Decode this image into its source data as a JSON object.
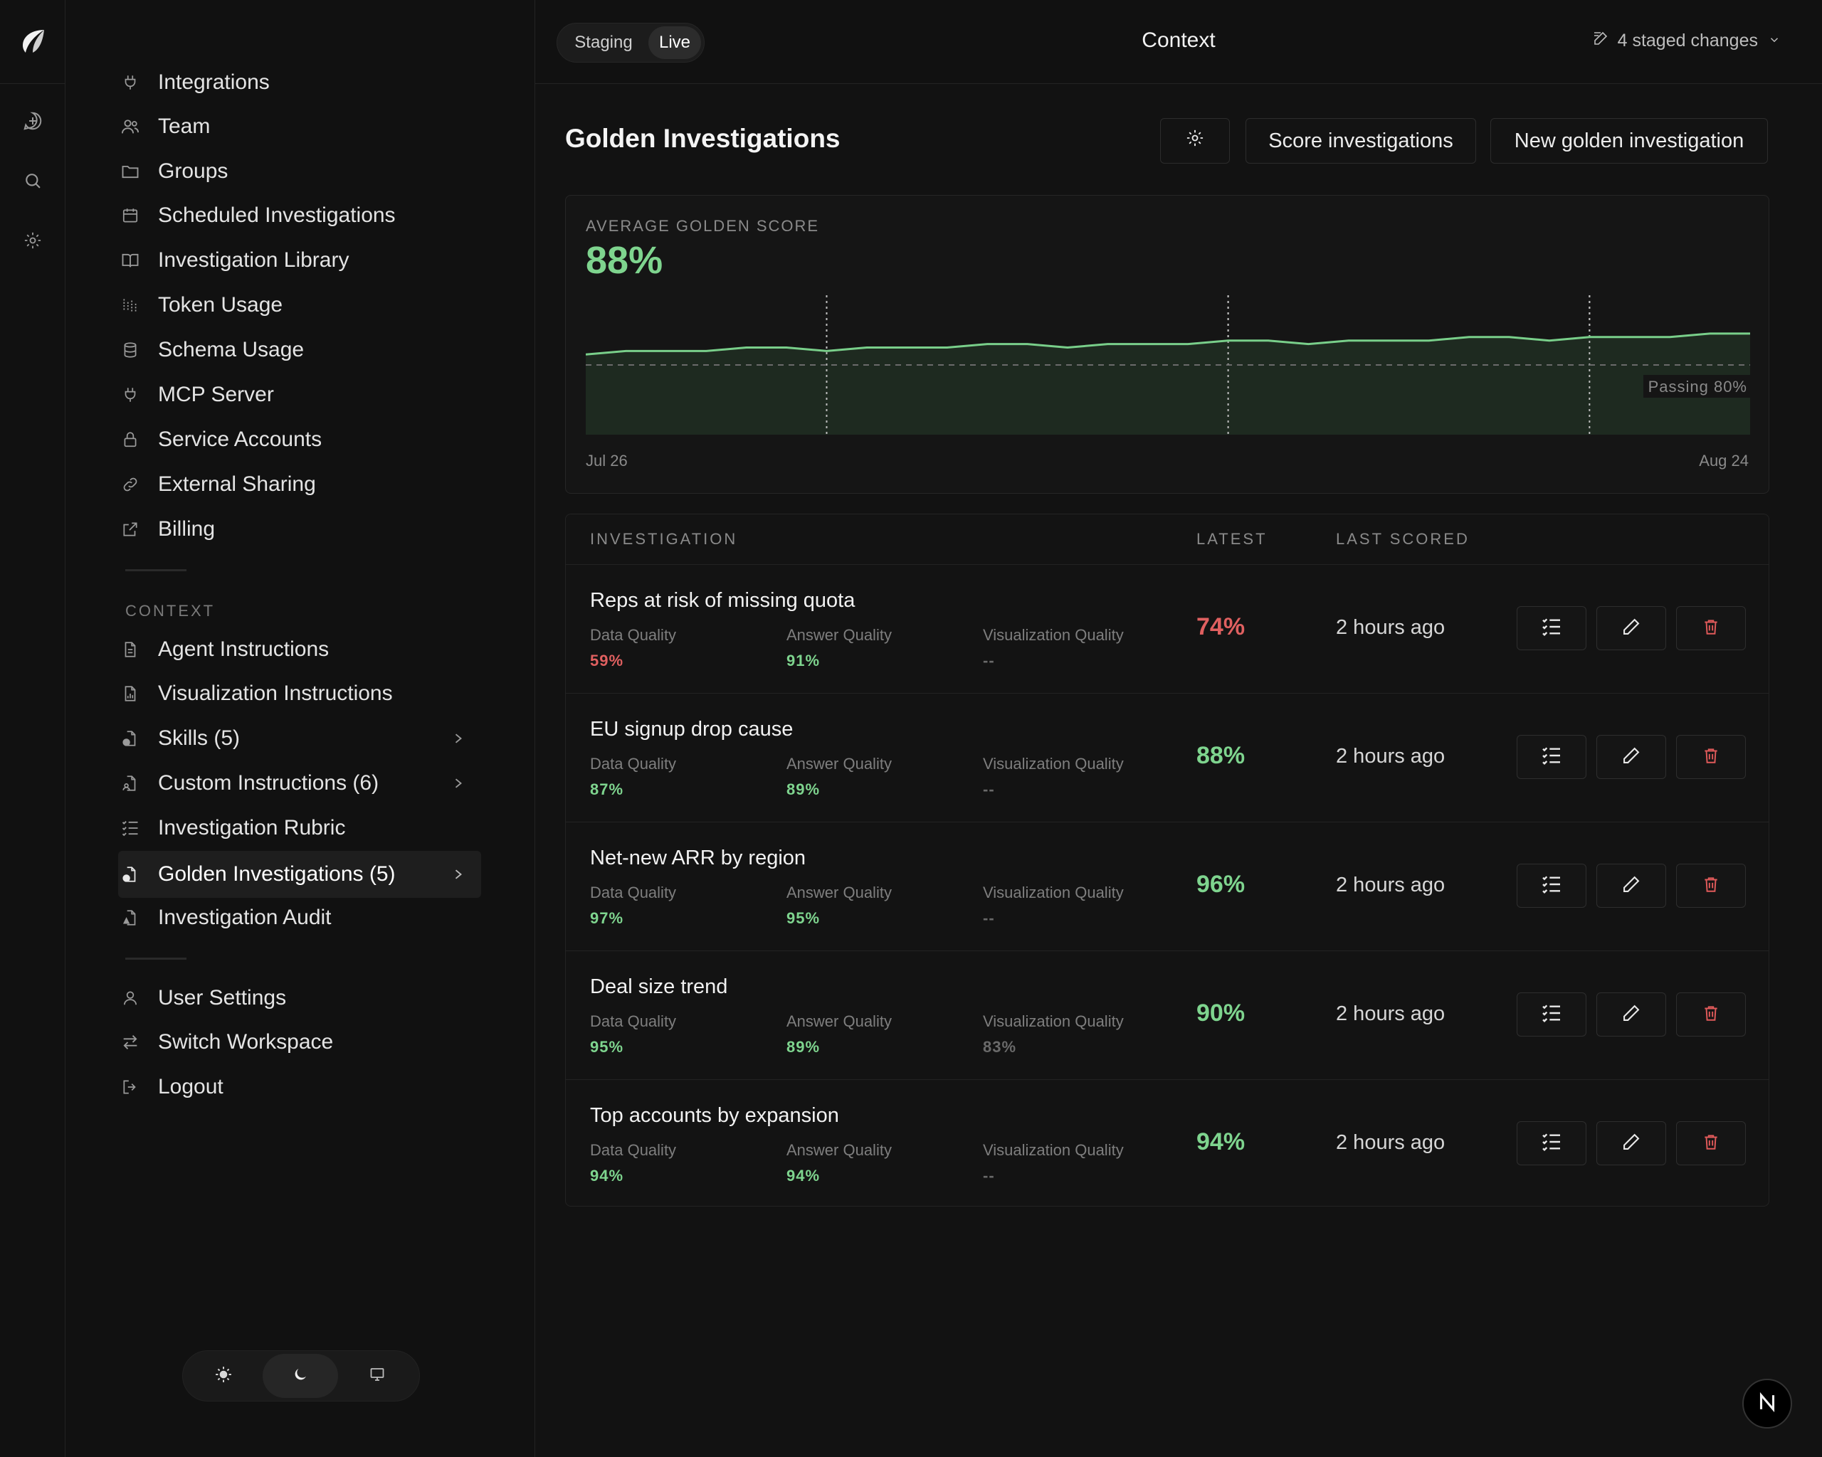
{
  "topbar": {
    "env": {
      "staging": "Staging",
      "live": "Live",
      "selected": "Live"
    },
    "title": "Context",
    "staged_changes": "4 staged changes"
  },
  "sidebar": {
    "items": [
      {
        "label": "Integrations",
        "icon": "plug-icon"
      },
      {
        "label": "Team",
        "icon": "users-icon"
      },
      {
        "label": "Groups",
        "icon": "folder-icon"
      },
      {
        "label": "Scheduled Investigations",
        "icon": "calendar-icon"
      },
      {
        "label": "Investigation Library",
        "icon": "book-icon"
      },
      {
        "label": "Token Usage",
        "icon": "bar-chart-icon"
      },
      {
        "label": "Schema Usage",
        "icon": "database-icon"
      },
      {
        "label": "MCP Server",
        "icon": "plug-icon"
      },
      {
        "label": "Service Accounts",
        "icon": "lock-icon"
      },
      {
        "label": "External Sharing",
        "icon": "link-icon"
      },
      {
        "label": "Billing",
        "icon": "external-link-icon"
      }
    ],
    "context_label": "CONTEXT",
    "context_items": [
      {
        "label": "Agent Instructions",
        "icon": "file-text-icon"
      },
      {
        "label": "Visualization Instructions",
        "icon": "file-chart-icon"
      },
      {
        "label": "Skills (5)",
        "icon": "file-check-icon"
      },
      {
        "label": "Custom Instructions (6)",
        "icon": "file-user-icon"
      },
      {
        "label": "Investigation Rubric",
        "icon": "list-checks-icon"
      },
      {
        "label": "Golden Investigations (5)",
        "icon": "file-star-icon"
      },
      {
        "label": "Investigation Audit",
        "icon": "file-search-icon"
      }
    ],
    "account_items": [
      {
        "label": "User Settings",
        "icon": "user-icon"
      },
      {
        "label": "Switch Workspace",
        "icon": "switch-icon"
      },
      {
        "label": "Logout",
        "icon": "logout-icon"
      }
    ],
    "theme": {
      "selected": "dark"
    }
  },
  "page": {
    "title": "Golden Investigations",
    "score_button": "Score investigations",
    "new_button": "New golden investigation"
  },
  "score": {
    "label": "AVERAGE GOLDEN SCORE",
    "value": "88%",
    "passing_label": "Passing 80%",
    "x_start": "Jul 26",
    "x_end": "Aug 24"
  },
  "chart_data": {
    "type": "area",
    "x": [
      "Jul 26",
      "",
      "",
      "",
      "",
      "",
      "",
      "",
      "",
      "",
      "",
      "",
      "",
      "",
      "",
      "",
      "",
      "",
      "",
      "",
      "",
      "",
      "",
      "",
      "",
      "",
      "",
      "",
      "",
      "Aug 24"
    ],
    "series": [
      {
        "values": [
          83,
          84,
          84,
          84,
          85,
          85,
          84,
          85,
          85,
          85,
          86,
          86,
          85,
          86,
          86,
          86,
          87,
          87,
          86,
          87,
          87,
          87,
          88,
          88,
          87,
          88,
          88,
          88,
          89,
          89
        ]
      }
    ],
    "threshold": 80,
    "markers_at_index": [
      6,
      16,
      25
    ],
    "ylim": [
      60,
      100
    ],
    "colors": {
      "line": "#79cf8a",
      "fill": "#1e2a20",
      "threshold": "#6a6a6a"
    }
  },
  "table": {
    "headers": {
      "investigation": "INVESTIGATION",
      "latest": "LATEST",
      "last_scored": "LAST SCORED"
    },
    "metric_labels": {
      "data": "Data Quality",
      "answer": "Answer Quality",
      "viz": "Visualization Quality"
    },
    "rows": [
      {
        "title": "Reps at risk of missing quota",
        "data": "59%",
        "answer": "91%",
        "viz": "--",
        "latest": "74%",
        "scored": "2 hours ago",
        "data_color": "#e06060",
        "answer_color": "#7ed48e",
        "latest_color": "#e06060"
      },
      {
        "title": "EU signup drop cause",
        "data": "87%",
        "answer": "89%",
        "viz": "--",
        "latest": "88%",
        "scored": "2 hours ago",
        "data_color": "#7ed48e",
        "answer_color": "#7ed48e",
        "latest_color": "#7ed48e"
      },
      {
        "title": "Net-new ARR by region",
        "data": "97%",
        "answer": "95%",
        "viz": "--",
        "latest": "96%",
        "scored": "2 hours ago",
        "data_color": "#7ed48e",
        "answer_color": "#7ed48e",
        "latest_color": "#7ed48e"
      },
      {
        "title": "Deal size trend",
        "data": "95%",
        "answer": "89%",
        "viz": "83%",
        "latest": "90%",
        "scored": "2 hours ago",
        "data_color": "#7ed48e",
        "answer_color": "#7ed48e",
        "latest_color": "#7ed48e"
      },
      {
        "title": "Top accounts by expansion",
        "data": "94%",
        "answer": "94%",
        "viz": "--",
        "latest": "94%",
        "scored": "2 hours ago",
        "data_color": "#7ed48e",
        "answer_color": "#7ed48e",
        "latest_color": "#7ed48e"
      }
    ]
  },
  "badge": {
    "letter": "N"
  }
}
